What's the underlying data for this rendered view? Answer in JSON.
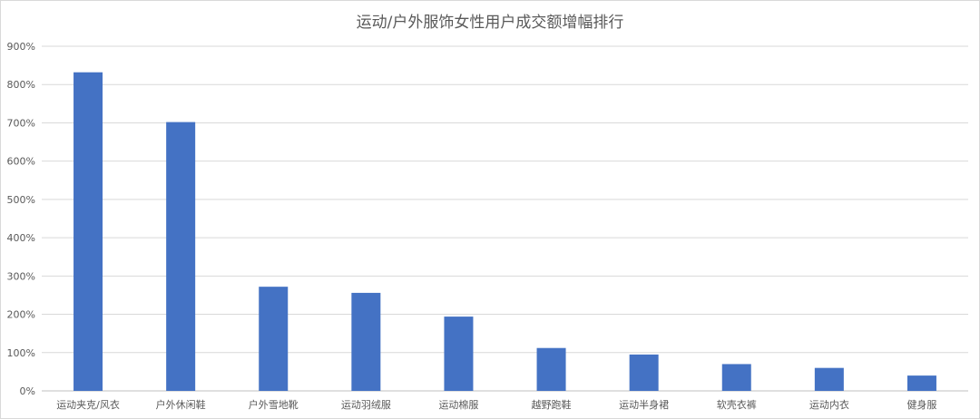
{
  "chart_data": {
    "type": "bar",
    "title": "运动/户外服饰女性用户成交额增幅排行",
    "categories": [
      "运动夹克/风衣",
      "户外休闲鞋",
      "户外雪地靴",
      "运动羽绒服",
      "运动棉服",
      "越野跑鞋",
      "运动半身裙",
      "软壳衣裤",
      "运动内衣",
      "健身服"
    ],
    "values": [
      832,
      702,
      272,
      256,
      194,
      112,
      95,
      70,
      60,
      40
    ],
    "ylim": [
      0,
      900
    ],
    "yticks": [
      "0%",
      "100%",
      "200%",
      "300%",
      "400%",
      "500%",
      "600%",
      "700%",
      "800%",
      "900%"
    ],
    "grid": true,
    "bar_color": "#4472C4"
  }
}
